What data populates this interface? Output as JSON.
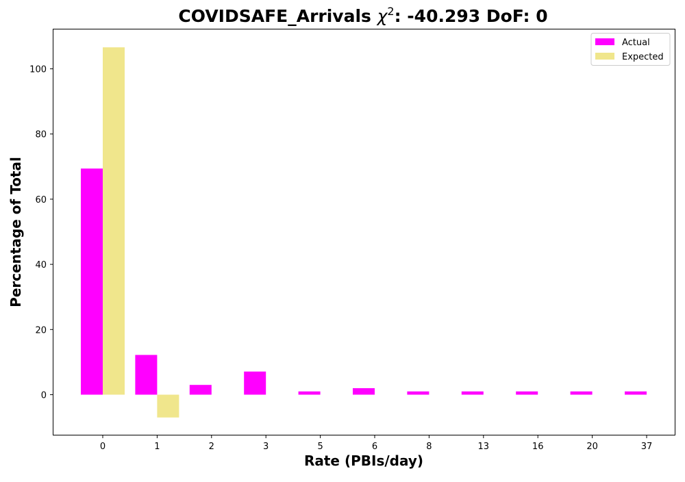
{
  "chart_data": {
    "type": "bar",
    "title_prefix": "COVIDSAFE_Arrivals ",
    "title_chi": "χ",
    "title_sup": "2",
    "title_suffix": ": -40.293 DoF: 0",
    "xlabel": "Rate (PBIs/day)",
    "ylabel": "Percentage of Total",
    "categories": [
      "0",
      "1",
      "2",
      "3",
      "5",
      "6",
      "8",
      "13",
      "16",
      "20",
      "37"
    ],
    "series": [
      {
        "name": "Actual",
        "color": "#ff00ff",
        "values": [
          69.4,
          12.2,
          3.0,
          7.1,
          1.0,
          2.0,
          1.0,
          1.0,
          1.0,
          1.0,
          1.0
        ]
      },
      {
        "name": "Expected",
        "color": "#f0e68c",
        "values": [
          106.6,
          -7.0,
          0,
          0,
          0,
          0,
          0,
          0,
          0,
          0,
          0
        ]
      }
    ],
    "ylim": [
      -12.3,
      112.3
    ],
    "yticks": [
      0,
      20,
      40,
      60,
      80,
      100
    ],
    "legend_position": "upper right",
    "grid": false
  }
}
